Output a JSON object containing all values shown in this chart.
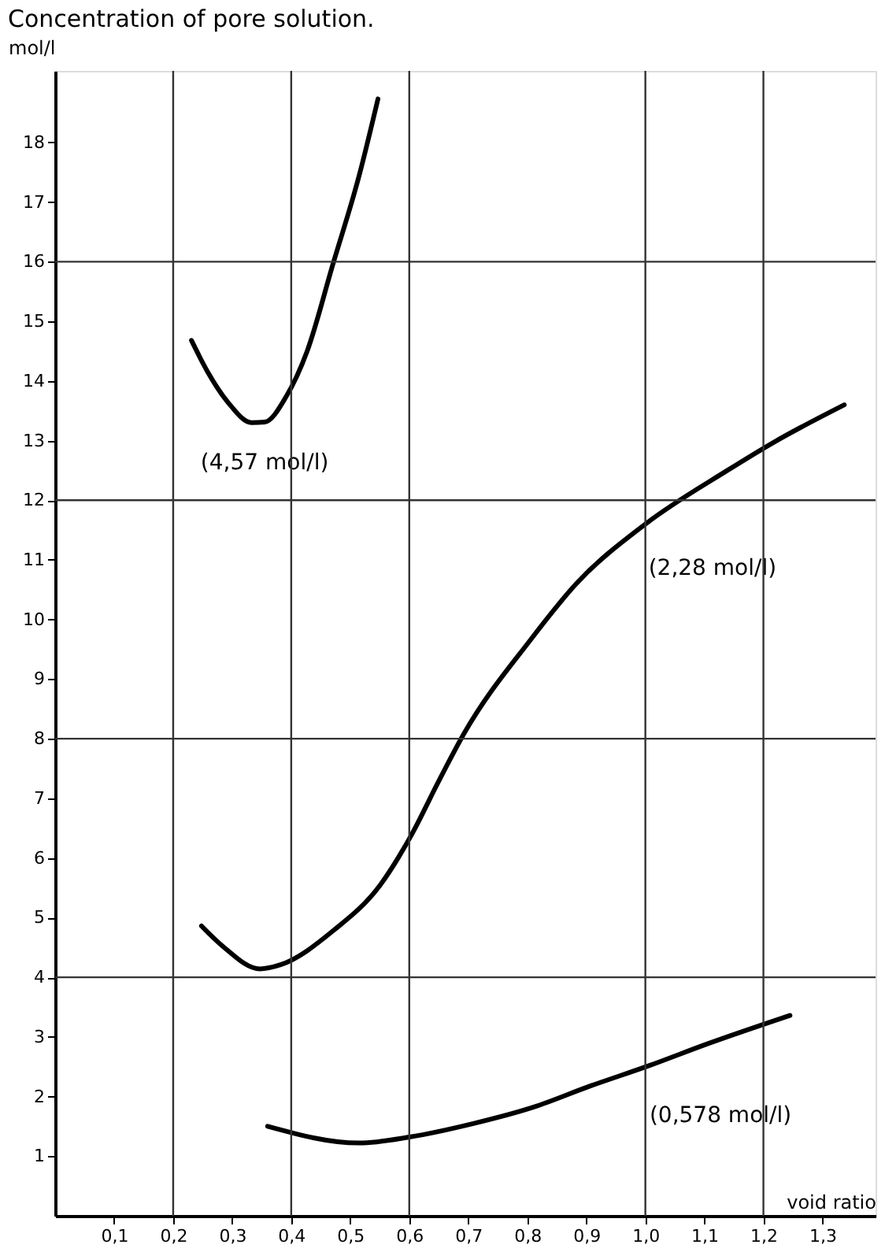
{
  "chart_data": {
    "type": "line",
    "title": "Concentration of pore solution.",
    "xlabel": "void ratio",
    "ylabel": "mol/l",
    "xlim": [
      0,
      1.39
    ],
    "ylim": [
      0,
      19.2
    ],
    "xticks": [
      {
        "value": 0.1,
        "label": "0,1"
      },
      {
        "value": 0.2,
        "label": "0,2"
      },
      {
        "value": 0.3,
        "label": "0,3"
      },
      {
        "value": 0.4,
        "label": "0,4"
      },
      {
        "value": 0.5,
        "label": "0,5"
      },
      {
        "value": 0.6,
        "label": "0,6"
      },
      {
        "value": 0.7,
        "label": "0,7"
      },
      {
        "value": 0.8,
        "label": "0,8"
      },
      {
        "value": 0.9,
        "label": "0,9"
      },
      {
        "value": 1.0,
        "label": "1,0"
      },
      {
        "value": 1.1,
        "label": "1,1"
      },
      {
        "value": 1.2,
        "label": "1,2"
      },
      {
        "value": 1.3,
        "label": "1,3"
      }
    ],
    "yticks": [
      1,
      2,
      3,
      4,
      5,
      6,
      7,
      8,
      9,
      10,
      11,
      12,
      13,
      14,
      15,
      16,
      17,
      18
    ],
    "grid": false,
    "marker": "none",
    "line_style": "solid",
    "series": [
      {
        "name": "(4,57 mol/l)",
        "color": "#000000",
        "x": [
          0.231,
          0.258,
          0.293,
          0.333,
          0.355,
          0.391,
          0.427,
          0.471,
          0.515,
          0.547
        ],
        "values": [
          14.68,
          14.16,
          13.64,
          13.3,
          13.31,
          13.73,
          14.5,
          15.97,
          17.44,
          18.73
        ]
      },
      {
        "name": "(2,28 mol/l)",
        "color": "#000000",
        "x": [
          0.248,
          0.284,
          0.347,
          0.382,
          0.471,
          0.551,
          0.605,
          0.649,
          0.693,
          0.804,
          0.883,
          1.0,
          1.139,
          1.219,
          1.337
        ],
        "values": [
          4.86,
          4.52,
          4.14,
          4.21,
          4.78,
          5.55,
          6.41,
          7.27,
          8.09,
          9.64,
          10.6,
          11.6,
          12.5,
          12.98,
          13.6
        ]
      },
      {
        "name": "(0,578 mol/l)",
        "color": "#000000",
        "x": [
          0.36,
          0.515,
          0.6,
          0.71,
          0.81,
          0.905,
          1.007,
          1.107,
          1.245
        ],
        "values": [
          1.5,
          1.22,
          1.32,
          1.55,
          1.82,
          2.17,
          2.52,
          2.89,
          3.36
        ]
      }
    ],
    "ref_lines": [
      {
        "axis": "x",
        "value": 0.2,
        "color": "#333333"
      },
      {
        "axis": "x",
        "value": 0.4,
        "color": "#333333"
      },
      {
        "axis": "x",
        "value": 0.6,
        "color": "#333333"
      },
      {
        "axis": "x",
        "value": 1.0,
        "color": "#333333"
      },
      {
        "axis": "x",
        "value": 1.2,
        "color": "#333333"
      },
      {
        "axis": "y",
        "value": 4,
        "color": "#333333"
      },
      {
        "axis": "y",
        "value": 8,
        "color": "#333333"
      },
      {
        "axis": "y",
        "value": 12,
        "color": "#333333"
      },
      {
        "axis": "y",
        "value": 16,
        "color": "#333333"
      }
    ]
  }
}
